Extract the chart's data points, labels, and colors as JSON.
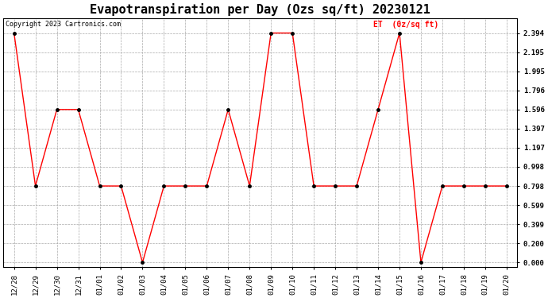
{
  "title": "Evapotranspiration per Day (Ozs sq/ft) 20230121",
  "copyright": "Copyright 2023 Cartronics.com",
  "legend_label": "ET  (0z/sq ft)",
  "x_labels": [
    "12/28",
    "12/29",
    "12/30",
    "12/31",
    "01/01",
    "01/02",
    "01/03",
    "01/04",
    "01/05",
    "01/06",
    "01/07",
    "01/08",
    "01/09",
    "01/10",
    "01/11",
    "01/12",
    "01/13",
    "01/14",
    "01/15",
    "01/16",
    "01/17",
    "01/18",
    "01/19",
    "01/20"
  ],
  "y_values": [
    2.394,
    0.798,
    1.596,
    1.596,
    0.798,
    0.798,
    0.0,
    0.798,
    0.798,
    0.798,
    1.596,
    0.798,
    2.394,
    2.394,
    0.798,
    0.798,
    0.798,
    1.596,
    2.394,
    0.0,
    0.798,
    0.798,
    0.798,
    0.798
  ],
  "y_ticks": [
    0.0,
    0.2,
    0.399,
    0.599,
    0.798,
    0.998,
    1.197,
    1.397,
    1.596,
    1.796,
    1.995,
    2.195,
    2.394
  ],
  "line_color": "red",
  "marker_color": "black",
  "grid_color": "#aaaaaa",
  "bg_color": "#ffffff",
  "title_fontsize": 11,
  "tick_fontsize": 6.5,
  "copyright_fontsize": 6,
  "legend_fontsize": 7,
  "legend_color": "red"
}
